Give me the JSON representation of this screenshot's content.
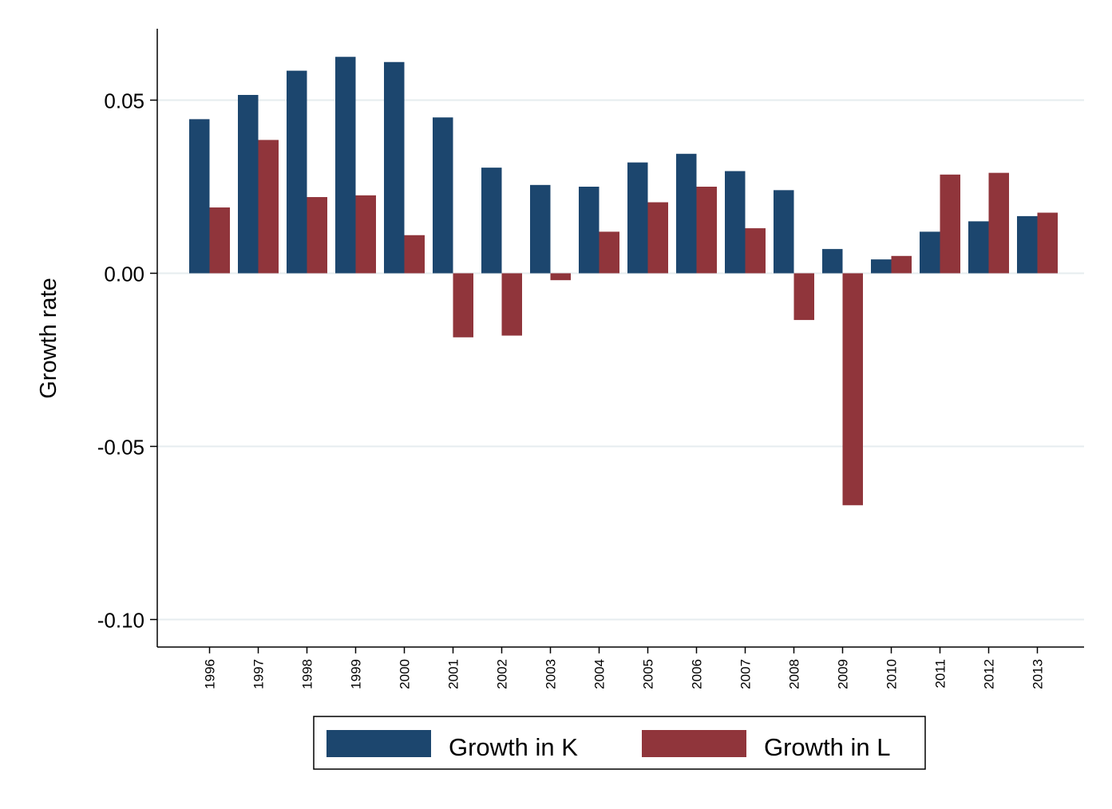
{
  "chart_data": {
    "type": "bar",
    "title": "",
    "xlabel": "",
    "ylabel": "Growth rate",
    "ylim": [
      -0.108,
      0.071
    ],
    "yticks": [
      0.05,
      0.0,
      -0.05,
      -0.1
    ],
    "ytick_labels": [
      "0.05",
      "0.00",
      "-0.05",
      "-0.10"
    ],
    "grid": true,
    "legend_position": "bottom",
    "categories": [
      "1996",
      "1997",
      "1998",
      "1999",
      "2000",
      "2001",
      "2002",
      "2003",
      "2004",
      "2005",
      "2006",
      "2007",
      "2008",
      "2009",
      "2010",
      "2011",
      "2012",
      "2013"
    ],
    "series": [
      {
        "name": "Growth in K",
        "color": "#1c466e",
        "values": [
          0.0445,
          0.0515,
          0.0585,
          0.0625,
          0.061,
          0.045,
          0.0305,
          0.0255,
          0.025,
          0.032,
          0.0345,
          0.0295,
          0.024,
          0.007,
          0.004,
          0.012,
          0.015,
          0.0165
        ]
      },
      {
        "name": "Growth in L",
        "color": "#90353b",
        "values": [
          0.019,
          0.0385,
          0.022,
          0.0225,
          0.011,
          -0.0185,
          -0.018,
          -0.002,
          0.012,
          0.0205,
          0.025,
          0.013,
          -0.0135,
          -0.067,
          0.005,
          0.0285,
          0.029,
          0.0175
        ]
      }
    ]
  }
}
